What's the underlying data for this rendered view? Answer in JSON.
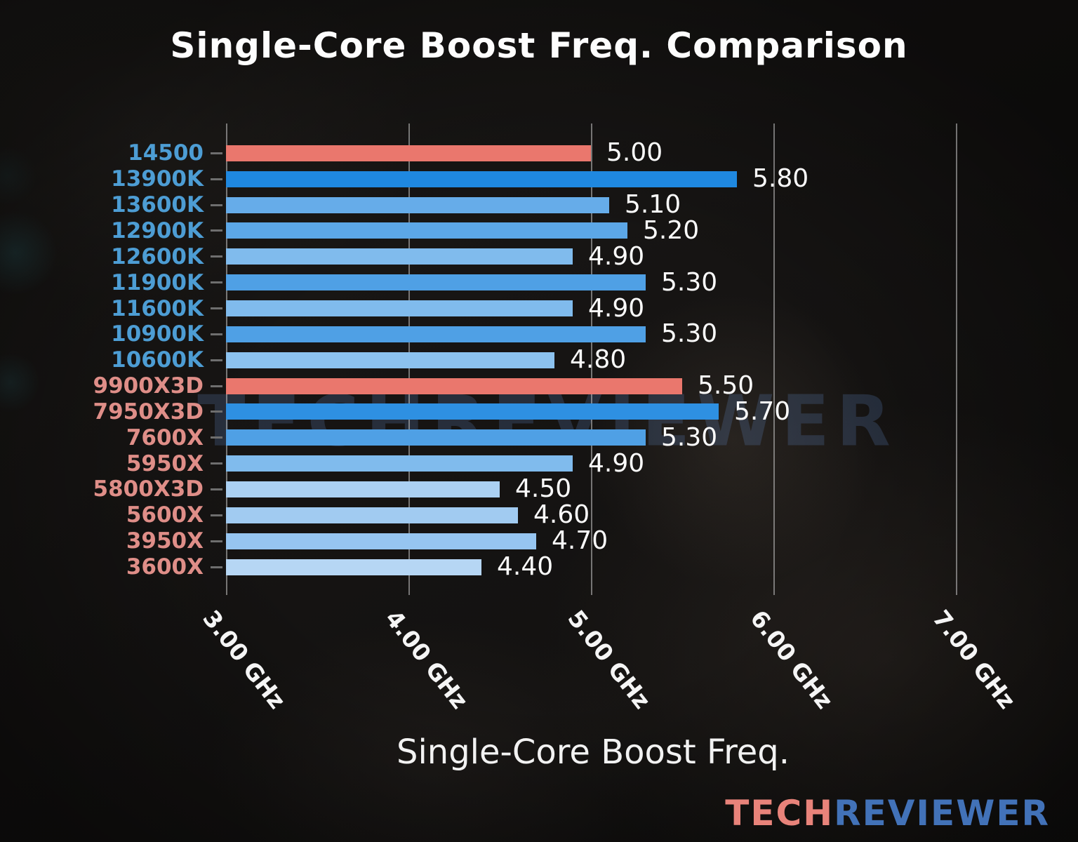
{
  "title": "Single-Core Boost Freq. Comparison",
  "watermark": "TECHREVIEWER",
  "logo": {
    "tech": "TECH",
    "reviewer": "REVIEWER",
    "tech_color": "#e8837a",
    "reviewer_color": "#4272b8"
  },
  "chart_data": {
    "type": "bar",
    "orientation": "horizontal",
    "title": "Single-Core Boost Freq. Comparison",
    "xlabel": "Single-Core Boost Freq.",
    "xlim": [
      3.0,
      7.0
    ],
    "xticks": [
      3.0,
      4.0,
      5.0,
      6.0,
      7.0
    ],
    "xtick_labels": [
      "3.00 GHz",
      "4.00 GHz",
      "5.00 GHz",
      "6.00 GHz",
      "7.00 GHz"
    ],
    "grid": true,
    "legend": false,
    "intel_label_color": "#4d9dd4",
    "amd_label_color": "#df8e88",
    "highlight_bar_color": "#ea776d",
    "bars": [
      {
        "name": "14500",
        "value": 5.0,
        "value_label": "5.00",
        "bar_color": "#ea776d",
        "label_color": "#4d9dd4"
      },
      {
        "name": "13900K",
        "value": 5.8,
        "value_label": "5.80",
        "bar_color": "#1f88e0",
        "label_color": "#4d9dd4"
      },
      {
        "name": "13600K",
        "value": 5.1,
        "value_label": "5.10",
        "bar_color": "#66ace9",
        "label_color": "#4d9dd4"
      },
      {
        "name": "12900K",
        "value": 5.2,
        "value_label": "5.20",
        "bar_color": "#5ca7e7",
        "label_color": "#4d9dd4"
      },
      {
        "name": "12600K",
        "value": 4.9,
        "value_label": "4.90",
        "bar_color": "#80bbed",
        "label_color": "#4d9dd4"
      },
      {
        "name": "11900K",
        "value": 5.3,
        "value_label": "5.30",
        "bar_color": "#4fa0e5",
        "label_color": "#4d9dd4"
      },
      {
        "name": "11600K",
        "value": 4.9,
        "value_label": "4.90",
        "bar_color": "#80bbed",
        "label_color": "#4d9dd4"
      },
      {
        "name": "10900K",
        "value": 5.3,
        "value_label": "5.30",
        "bar_color": "#4fa0e5",
        "label_color": "#4d9dd4"
      },
      {
        "name": "10600K",
        "value": 4.8,
        "value_label": "4.80",
        "bar_color": "#8cc2ef",
        "label_color": "#4d9dd4"
      },
      {
        "name": "9900X3D",
        "value": 5.5,
        "value_label": "5.50",
        "bar_color": "#ea776d",
        "label_color": "#df8e88"
      },
      {
        "name": "7950X3D",
        "value": 5.7,
        "value_label": "5.70",
        "bar_color": "#2e90e2",
        "label_color": "#df8e88"
      },
      {
        "name": "7600X",
        "value": 5.3,
        "value_label": "5.30",
        "bar_color": "#4fa0e5",
        "label_color": "#df8e88"
      },
      {
        "name": "5950X",
        "value": 4.9,
        "value_label": "4.90",
        "bar_color": "#80bbed",
        "label_color": "#df8e88"
      },
      {
        "name": "5800X3D",
        "value": 4.5,
        "value_label": "4.50",
        "bar_color": "#abd0f2",
        "label_color": "#df8e88"
      },
      {
        "name": "5600X",
        "value": 4.6,
        "value_label": "4.60",
        "bar_color": "#a1cbf1",
        "label_color": "#df8e88"
      },
      {
        "name": "3950X",
        "value": 4.7,
        "value_label": "4.70",
        "bar_color": "#96c5f0",
        "label_color": "#df8e88"
      },
      {
        "name": "3600X",
        "value": 4.4,
        "value_label": "4.40",
        "bar_color": "#b6d6f4",
        "label_color": "#df8e88"
      }
    ]
  }
}
